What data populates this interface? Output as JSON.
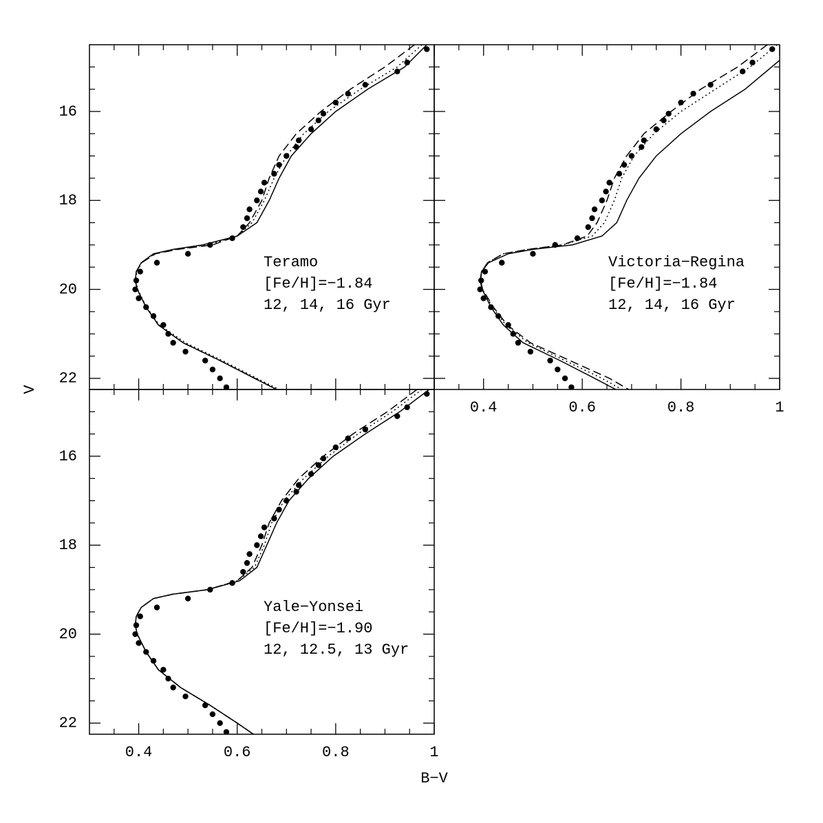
{
  "xlabel": "B−V",
  "ylabel": "V",
  "chart_data": [
    {
      "type": "line",
      "show_xticklabels": false,
      "show_yticklabels": true,
      "annotation": [
        "Teramo",
        "[Fe/H]=−1.84",
        "12, 14, 16 Gyr"
      ],
      "xlim": [
        0.3,
        1.0
      ],
      "ylim": [
        22.25,
        14.5
      ],
      "xticks": [
        0.4,
        0.6,
        0.8,
        1
      ],
      "yticks": [
        16,
        18,
        20,
        22
      ],
      "xminorticks": [
        0.35,
        0.45,
        0.5,
        0.55,
        0.65,
        0.7,
        0.75,
        0.85,
        0.9,
        0.95
      ],
      "yminorticks": [
        15,
        15.5,
        16.5,
        17,
        17.5,
        18.5,
        19,
        19.5,
        20.5,
        21,
        21.5
      ],
      "series": [
        {
          "style": "points",
          "color": "#000",
          "x": [
            0.985,
            0.945,
            0.925,
            0.86,
            0.825,
            0.8,
            0.775,
            0.765,
            0.75,
            0.725,
            0.72,
            0.7,
            0.685,
            0.675,
            0.655,
            0.648,
            0.64,
            0.625,
            0.62,
            0.612,
            0.59,
            0.545,
            0.5,
            0.437,
            0.403,
            0.395,
            0.393,
            0.4,
            0.415,
            0.43,
            0.45,
            0.46,
            0.47,
            0.495,
            0.535,
            0.55,
            0.565,
            0.578
          ],
          "values": [
            14.6,
            14.9,
            15.1,
            15.4,
            15.6,
            15.8,
            16.05,
            16.2,
            16.4,
            16.65,
            16.8,
            17.0,
            17.2,
            17.4,
            17.6,
            17.8,
            18.0,
            18.2,
            18.4,
            18.6,
            18.85,
            19.0,
            19.2,
            19.4,
            19.6,
            19.8,
            20.0,
            20.2,
            20.4,
            20.6,
            20.8,
            21.0,
            21.2,
            21.4,
            21.6,
            21.8,
            22.0,
            22.2
          ]
        },
        {
          "style": "solid",
          "color": "#000",
          "x": [
            0.985,
            0.94,
            0.865,
            0.8,
            0.75,
            0.71,
            0.685,
            0.665,
            0.64,
            0.6,
            0.53,
            0.47,
            0.43,
            0.405,
            0.395,
            0.393,
            0.397,
            0.415,
            0.44,
            0.49,
            0.565,
            0.635,
            0.68
          ],
          "values": [
            14.5,
            15,
            15.5,
            16,
            16.5,
            17,
            17.5,
            18,
            18.5,
            18.8,
            19,
            19.1,
            19.2,
            19.4,
            19.6,
            19.8,
            20,
            20.4,
            20.8,
            21.2,
            21.6,
            22,
            22.25
          ]
        },
        {
          "style": "dotted",
          "color": "#000",
          "x": [
            0.975,
            0.925,
            0.85,
            0.785,
            0.735,
            0.7,
            0.675,
            0.655,
            0.63,
            0.6,
            0.54,
            0.475,
            0.432,
            0.406,
            0.396,
            0.394,
            0.398,
            0.416,
            0.442,
            0.495,
            0.57,
            0.64,
            0.685
          ],
          "values": [
            14.5,
            15,
            15.5,
            16,
            16.5,
            17,
            17.5,
            18,
            18.5,
            18.8,
            19,
            19.1,
            19.2,
            19.4,
            19.6,
            19.8,
            20,
            20.4,
            20.8,
            21.2,
            21.6,
            22,
            22.25
          ]
        },
        {
          "style": "dashed",
          "color": "#000",
          "x": [
            0.96,
            0.9,
            0.83,
            0.77,
            0.72,
            0.685,
            0.665,
            0.65,
            0.625,
            0.6,
            0.55,
            0.48,
            0.434,
            0.406,
            0.395,
            0.393,
            0.397,
            0.415,
            0.44,
            0.49,
            0.565,
            0.636,
            0.68
          ],
          "values": [
            14.5,
            15,
            15.5,
            16,
            16.5,
            17,
            17.5,
            18,
            18.5,
            18.8,
            19,
            19.1,
            19.2,
            19.4,
            19.6,
            19.8,
            20,
            20.4,
            20.8,
            21.2,
            21.6,
            22,
            22.25
          ]
        }
      ]
    },
    {
      "type": "line",
      "show_xticklabels": true,
      "show_yticklabels": false,
      "annotation": [
        "Victoria−Regina",
        "[Fe/H]=−1.84",
        "12, 14, 16 Gyr"
      ],
      "xlim": [
        0.3,
        1.0
      ],
      "ylim": [
        22.25,
        14.5
      ],
      "xticks": [
        0.4,
        0.6,
        0.8,
        1
      ],
      "yticks": [
        16,
        18,
        20,
        22
      ],
      "xminorticks": [
        0.35,
        0.45,
        0.5,
        0.55,
        0.65,
        0.7,
        0.75,
        0.85,
        0.9,
        0.95
      ],
      "yminorticks": [
        15,
        15.5,
        16.5,
        17,
        17.5,
        18.5,
        19,
        19.5,
        20.5,
        21,
        21.5
      ],
      "series": [
        {
          "style": "points",
          "color": "#000",
          "x": [
            0.985,
            0.945,
            0.925,
            0.86,
            0.825,
            0.8,
            0.775,
            0.765,
            0.75,
            0.725,
            0.72,
            0.7,
            0.685,
            0.675,
            0.655,
            0.648,
            0.64,
            0.625,
            0.62,
            0.612,
            0.59,
            0.545,
            0.5,
            0.437,
            0.403,
            0.395,
            0.393,
            0.4,
            0.415,
            0.43,
            0.45,
            0.46,
            0.47,
            0.495,
            0.535,
            0.55,
            0.565,
            0.578
          ],
          "values": [
            14.6,
            14.9,
            15.1,
            15.4,
            15.6,
            15.8,
            16.05,
            16.2,
            16.4,
            16.65,
            16.8,
            17.0,
            17.2,
            17.4,
            17.6,
            17.8,
            18.0,
            18.2,
            18.4,
            18.6,
            18.85,
            19.0,
            19.2,
            19.4,
            19.6,
            19.8,
            20.0,
            20.2,
            20.4,
            20.6,
            20.8,
            21.0,
            21.2,
            21.4,
            21.6,
            21.8,
            22.0,
            22.2
          ]
        },
        {
          "style": "solid",
          "color": "#000",
          "x": [
            1.0,
            0.93,
            0.86,
            0.8,
            0.75,
            0.715,
            0.69,
            0.67,
            0.64,
            0.58,
            0.5,
            0.45,
            0.41,
            0.396,
            0.393,
            0.397,
            0.415,
            0.44,
            0.48,
            0.555,
            0.625,
            0.668
          ],
          "values": [
            14.85,
            15.5,
            16,
            16.5,
            17,
            17.5,
            18,
            18.5,
            18.8,
            19,
            19.1,
            19.2,
            19.4,
            19.6,
            19.8,
            20,
            20.4,
            20.8,
            21.2,
            21.6,
            22,
            22.25
          ]
        },
        {
          "style": "dotted",
          "color": "#000",
          "x": [
            0.995,
            0.94,
            0.87,
            0.8,
            0.745,
            0.705,
            0.68,
            0.665,
            0.645,
            0.62,
            0.56,
            0.49,
            0.44,
            0.408,
            0.396,
            0.394,
            0.398,
            0.418,
            0.445,
            0.49,
            0.565,
            0.64,
            0.68
          ],
          "values": [
            14.5,
            15,
            15.5,
            16,
            16.5,
            17,
            17.5,
            18,
            18.5,
            18.8,
            19,
            19.1,
            19.2,
            19.4,
            19.6,
            19.8,
            20,
            20.4,
            20.8,
            21.2,
            21.6,
            22,
            22.25
          ]
        },
        {
          "style": "dashed",
          "color": "#000",
          "x": [
            0.975,
            0.915,
            0.84,
            0.78,
            0.725,
            0.69,
            0.665,
            0.65,
            0.63,
            0.61,
            0.56,
            0.49,
            0.44,
            0.408,
            0.396,
            0.394,
            0.398,
            0.42,
            0.448,
            0.495,
            0.575,
            0.655,
            0.694
          ],
          "values": [
            14.5,
            15,
            15.5,
            16,
            16.5,
            17,
            17.5,
            18,
            18.5,
            18.8,
            19,
            19.1,
            19.2,
            19.4,
            19.6,
            19.8,
            20,
            20.4,
            20.8,
            21.2,
            21.6,
            22,
            22.25
          ]
        }
      ]
    },
    {
      "type": "line",
      "show_xticklabels": true,
      "show_yticklabels": true,
      "annotation": [
        "Yale−Yonsei",
        "[Fe/H]=−1.90",
        "12, 12.5, 13 Gyr"
      ],
      "xlim": [
        0.3,
        1.0
      ],
      "ylim": [
        22.25,
        14.5
      ],
      "xticks": [
        0.4,
        0.6,
        0.8,
        1
      ],
      "yticks": [
        16,
        18,
        20,
        22
      ],
      "xminorticks": [
        0.35,
        0.45,
        0.5,
        0.55,
        0.65,
        0.7,
        0.75,
        0.85,
        0.9,
        0.95
      ],
      "yminorticks": [
        15,
        15.5,
        16.5,
        17,
        17.5,
        18.5,
        19,
        19.5,
        20.5,
        21,
        21.5
      ],
      "series": [
        {
          "style": "points",
          "color": "#000",
          "x": [
            0.985,
            0.945,
            0.925,
            0.86,
            0.825,
            0.8,
            0.775,
            0.765,
            0.75,
            0.725,
            0.72,
            0.7,
            0.685,
            0.675,
            0.655,
            0.648,
            0.64,
            0.625,
            0.62,
            0.612,
            0.59,
            0.545,
            0.5,
            0.437,
            0.403,
            0.395,
            0.393,
            0.4,
            0.415,
            0.43,
            0.45,
            0.46,
            0.47,
            0.495,
            0.535,
            0.55,
            0.565,
            0.578
          ],
          "values": [
            14.6,
            14.9,
            15.1,
            15.4,
            15.6,
            15.8,
            16.05,
            16.2,
            16.4,
            16.65,
            16.8,
            17.0,
            17.2,
            17.4,
            17.6,
            17.8,
            18.0,
            18.2,
            18.4,
            18.6,
            18.85,
            19.0,
            19.2,
            19.4,
            19.6,
            19.8,
            20.0,
            20.2,
            20.4,
            20.6,
            20.8,
            21.0,
            21.2,
            21.4,
            21.6,
            21.8,
            22.0,
            22.2
          ]
        },
        {
          "style": "solid",
          "color": "#000",
          "x": [
            0.99,
            0.93,
            0.86,
            0.795,
            0.745,
            0.705,
            0.68,
            0.66,
            0.64,
            0.605,
            0.54,
            0.47,
            0.43,
            0.405,
            0.395,
            0.393,
            0.397,
            0.415,
            0.44,
            0.485,
            0.545,
            0.6,
            0.633
          ],
          "values": [
            14.5,
            15,
            15.5,
            16,
            16.5,
            17,
            17.5,
            18,
            18.5,
            18.8,
            19,
            19.1,
            19.2,
            19.4,
            19.6,
            19.8,
            20,
            20.4,
            20.8,
            21.2,
            21.6,
            22,
            22.25
          ]
        },
        {
          "style": "dotted",
          "color": "#000",
          "x": [
            0.975,
            0.915,
            0.845,
            0.785,
            0.735,
            0.695,
            0.67,
            0.655,
            0.635,
            0.6,
            0.54,
            0.47,
            0.43,
            0.405,
            0.395,
            0.393,
            0.397,
            0.415,
            0.44,
            0.485,
            0.545,
            0.6,
            0.633
          ],
          "values": [
            14.5,
            15,
            15.5,
            16,
            16.5,
            17,
            17.5,
            18,
            18.5,
            18.8,
            19,
            19.1,
            19.2,
            19.4,
            19.6,
            19.8,
            20,
            20.4,
            20.8,
            21.2,
            21.6,
            22,
            22.25
          ]
        },
        {
          "style": "dashed",
          "color": "#000",
          "x": [
            0.965,
            0.905,
            0.835,
            0.775,
            0.725,
            0.69,
            0.665,
            0.65,
            0.63,
            0.6,
            0.54,
            0.47,
            0.43,
            0.405,
            0.395,
            0.393,
            0.397,
            0.415,
            0.44,
            0.485,
            0.545,
            0.6,
            0.633
          ],
          "values": [
            14.5,
            15,
            15.5,
            16,
            16.5,
            17,
            17.5,
            18,
            18.5,
            18.8,
            19,
            19.1,
            19.2,
            19.4,
            19.6,
            19.8,
            20,
            20.4,
            20.8,
            21.2,
            21.6,
            22,
            22.25
          ]
        }
      ]
    }
  ]
}
